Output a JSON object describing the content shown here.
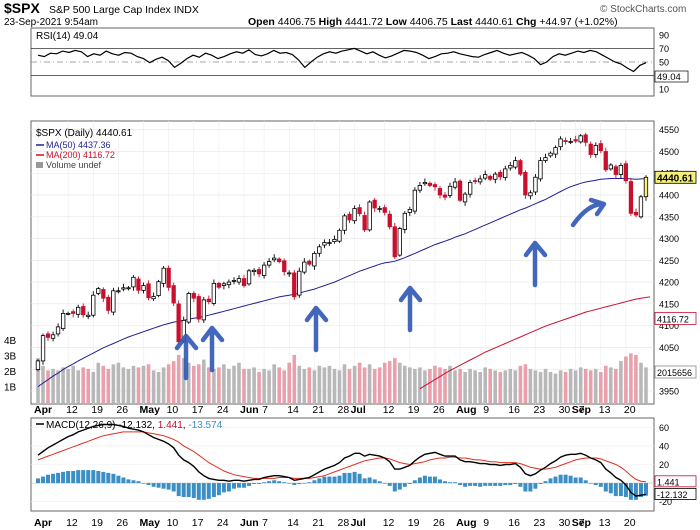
{
  "header": {
    "symbol": "$SPX",
    "name": "S&P 500 Large Cap Index",
    "exchange": "INDX",
    "date": "23-Sep-2021 9:54am",
    "open_label": "Open",
    "open": "4406.75",
    "high_label": "High",
    "high": "4441.72",
    "low_label": "Low",
    "low": "4406.75",
    "last_label": "Last",
    "last": "4440.61",
    "chg_label": "Chg",
    "chg": "+44.97 (+1.02%)",
    "watermark": "© StockCharts.com"
  },
  "colors": {
    "up": "#000000",
    "down": "#c8102e",
    "ma50": "#1f1f8f",
    "ma200": "#c8102e",
    "vol_up": "#b8b8b8",
    "vol_down": "#e8a0ac",
    "macd": "#000000",
    "signal": "#e0301e",
    "hist": "#3b8fc4",
    "arrow": "#2f57b5",
    "rsi": "#000000",
    "last_tag_bg": "#f5f07a"
  },
  "chart_data": [
    {
      "type": "line",
      "panel": "rsi",
      "legend": "RSI(14) 49.04",
      "y_ticks": [
        90,
        70,
        50,
        30,
        10
      ],
      "ylim": [
        0,
        100
      ],
      "reference_lines": [
        70,
        50,
        30
      ],
      "last_value": "49.04",
      "values": [
        60,
        58,
        63,
        62,
        66,
        64,
        67,
        65,
        58,
        62,
        60,
        66,
        62,
        60,
        64,
        63,
        58,
        55,
        49,
        54,
        57,
        52,
        42,
        48,
        55,
        60,
        57,
        63,
        60,
        55,
        58,
        62,
        65,
        63,
        68,
        61,
        59,
        62,
        67,
        63,
        64,
        61,
        53,
        42,
        50,
        57,
        62,
        65,
        63,
        66,
        68,
        70,
        66,
        62,
        65,
        60,
        56,
        59,
        63,
        67,
        66,
        64,
        60,
        55,
        58,
        62,
        63,
        65,
        62,
        60,
        58,
        57,
        61,
        64,
        67,
        63,
        60,
        62,
        64,
        60,
        55,
        46,
        50,
        58,
        62,
        60,
        63,
        66,
        64,
        67,
        65,
        60,
        55,
        50,
        47,
        41,
        36,
        45,
        49
      ]
    },
    {
      "type": "candlestick",
      "panel": "price",
      "legend": [
        "$SPX (Daily) 4440.61",
        "MA(50) 4437.36",
        "MA(200) 4116.72",
        "Volume undef"
      ],
      "y_ticks": [
        4550,
        4500,
        4450,
        4400,
        4350,
        4300,
        4250,
        4200,
        4150,
        4100,
        4050,
        4000,
        3950
      ],
      "ylim": [
        3920,
        4570
      ],
      "last_tags": [
        {
          "label": "4440.61",
          "value": 4440.61
        },
        {
          "label": "4116.72",
          "value": 4116.72
        },
        {
          "label": "2015656",
          "value": 2015656
        }
      ],
      "volume_ticks": [
        "4B",
        "3B",
        "2B",
        "1B"
      ],
      "x_labels": [
        {
          "label": "Apr",
          "bar": 0
        },
        {
          "label": "12",
          "bar": 6
        },
        {
          "label": "19",
          "bar": 11
        },
        {
          "label": "26",
          "bar": 16
        },
        {
          "label": "May",
          "bar": 21
        },
        {
          "label": "10",
          "bar": 26
        },
        {
          "label": "17",
          "bar": 31
        },
        {
          "label": "24",
          "bar": 36
        },
        {
          "label": "Jun",
          "bar": 41
        },
        {
          "label": "7",
          "bar": 45
        },
        {
          "label": "14",
          "bar": 50
        },
        {
          "label": "21",
          "bar": 55
        },
        {
          "label": "28",
          "bar": 60
        },
        {
          "label": "Jul",
          "bar": 63
        },
        {
          "label": "12",
          "bar": 69
        },
        {
          "label": "19",
          "bar": 74
        },
        {
          "label": "26",
          "bar": 79
        },
        {
          "label": "Aug",
          "bar": 84
        },
        {
          "label": "9",
          "bar": 89
        },
        {
          "label": "16",
          "bar": 94
        },
        {
          "label": "23",
          "bar": 99
        },
        {
          "label": "30",
          "bar": 104
        },
        {
          "label": "Sep",
          "bar": 107
        },
        {
          "label": "7",
          "bar": 108
        },
        {
          "label": "13",
          "bar": 112
        },
        {
          "label": "20",
          "bar": 117
        }
      ],
      "closes": [
        4019,
        4077,
        4073,
        4079,
        4097,
        4128,
        4128,
        4128,
        4142,
        4125,
        4124,
        4170,
        4185,
        4163,
        4135,
        4180,
        4180,
        4187,
        4187,
        4211,
        4181,
        4192,
        4164,
        4167,
        4201,
        4232,
        4188,
        4152,
        4063,
        4112,
        4174,
        4163,
        4115,
        4159,
        4155,
        4197,
        4188,
        4196,
        4200,
        4204,
        4208,
        4192,
        4226,
        4227,
        4219,
        4239,
        4247,
        4255,
        4247,
        4224,
        4221,
        4166,
        4225,
        4246,
        4241,
        4266,
        4281,
        4291,
        4291,
        4298,
        4319,
        4352,
        4343,
        4369,
        4357,
        4320,
        4384,
        4370,
        4369,
        4360,
        4327,
        4258,
        4323,
        4358,
        4367,
        4411,
        4422,
        4429,
        4422,
        4419,
        4400,
        4395,
        4420,
        4430,
        4388,
        4402,
        4429,
        4432,
        4437,
        4447,
        4436,
        4448,
        4442,
        4460,
        4468,
        4479,
        4448,
        4400,
        4405,
        4441,
        4479,
        4486,
        4496,
        4509,
        4529,
        4523,
        4523,
        4524,
        4536,
        4521,
        4493,
        4514,
        4502,
        4458,
        4469,
        4447,
        4468,
        4433,
        4358,
        4354,
        4396,
        4440.61
      ],
      "ma50": [
        3960,
        3968,
        3976,
        3984,
        3991,
        3999,
        4006,
        4012,
        4019,
        4025,
        4031,
        4037,
        4043,
        4049,
        4054,
        4059,
        4064,
        4069,
        4074,
        4078,
        4082,
        4086,
        4090,
        4094,
        4098,
        4102,
        4105,
        4108,
        4110,
        4112,
        4115,
        4117,
        4119,
        4121,
        4124,
        4127,
        4130,
        4133,
        4136,
        4139,
        4142,
        4145,
        4148,
        4151,
        4154,
        4157,
        4160,
        4163,
        4166,
        4168,
        4170,
        4172,
        4175,
        4178,
        4181,
        4184,
        4188,
        4192,
        4196,
        4200,
        4205,
        4210,
        4215,
        4220,
        4225,
        4229,
        4233,
        4237,
        4241,
        4244,
        4246,
        4248,
        4252,
        4256,
        4261,
        4266,
        4271,
        4276,
        4281,
        4286,
        4290,
        4294,
        4298,
        4303,
        4307,
        4311,
        4316,
        4321,
        4326,
        4331,
        4336,
        4341,
        4346,
        4351,
        4356,
        4361,
        4366,
        4370,
        4375,
        4380,
        4385,
        4390,
        4396,
        4402,
        4408,
        4414,
        4419,
        4423,
        4427,
        4430,
        4432,
        4434,
        4436,
        4437,
        4438,
        4438,
        4438,
        4438,
        4437,
        4436,
        4437,
        4437.36
      ],
      "ma200": [
        3950,
        3950,
        3950,
        3950,
        3950,
        3950,
        3950,
        3950,
        3950,
        3950,
        3950,
        3950,
        3950,
        3950,
        3950,
        3950,
        3950,
        3950,
        3950,
        3950,
        3950,
        3950,
        3950,
        3950,
        3950,
        3950,
        3950,
        3950,
        3950,
        3950,
        3950,
        3950,
        3950,
        3950,
        3950,
        3950,
        3950,
        3950,
        3950,
        3950,
        3950,
        3950,
        3950,
        3950,
        3950,
        3950,
        3950,
        3950,
        3950,
        3950,
        3950,
        3950,
        3950,
        3950,
        3950,
        3950,
        3950,
        3950,
        3950,
        3950,
        3950,
        3950,
        3950,
        3950,
        3950,
        3950,
        3950,
        3950,
        3950,
        3950,
        3950,
        3950,
        3950,
        3950,
        3950,
        3950,
        3955,
        3962,
        3969,
        3976,
        3983,
        3990,
        3997,
        4003,
        4009,
        4015,
        4021,
        4027,
        4033,
        4039,
        4044,
        4049,
        4054,
        4059,
        4064,
        4069,
        4074,
        4079,
        4084,
        4089,
        4094,
        4099,
        4103,
        4107,
        4111,
        4115,
        4119,
        4123,
        4127,
        4131,
        4134,
        4137,
        4140,
        4143,
        4146,
        4149,
        4152,
        4155,
        4158,
        4161,
        4163,
        4116.72
      ],
      "volumes": [
        2.9,
        2.4,
        2.1,
        2.2,
        2.1,
        2.3,
        2.2,
        2.4,
        2.1,
        2.3,
        2.2,
        2.0,
        2.6,
        2.4,
        2.2,
        2.5,
        2.6,
        2.3,
        2.2,
        2.4,
        2.3,
        2.4,
        2.5,
        2.1,
        2.0,
        2.3,
        2.5,
        2.7,
        3.1,
        2.9,
        2.6,
        2.4,
        2.5,
        2.8,
        2.3,
        2.2,
        2.3,
        2.5,
        2.2,
        2.4,
        2.6,
        2.2,
        2.2,
        2.3,
        2.0,
        2.2,
        2.1,
        2.5,
        2.3,
        2.1,
        2.6,
        3.1,
        2.4,
        2.2,
        2.3,
        2.1,
        2.4,
        2.3,
        2.4,
        2.2,
        2.1,
        2.5,
        2.2,
        2.4,
        2.6,
        2.3,
        2.5,
        2.2,
        2.3,
        2.6,
        2.7,
        2.9,
        2.6,
        2.4,
        2.3,
        2.2,
        2.3,
        2.1,
        2.2,
        2.4,
        2.3,
        2.2,
        2.4,
        2.1,
        2.2,
        2.0,
        2.2,
        2.1,
        2.0,
        2.3,
        2.2,
        2.1,
        2.0,
        2.1,
        2.2,
        2.1,
        2.4,
        2.5,
        2.2,
        2.1,
        2.0,
        2.2,
        2.0,
        1.9,
        2.1,
        2.0,
        2.2,
        2.1,
        2.3,
        2.2,
        2.1,
        2.2,
        2.0,
        2.4,
        2.3,
        2.2,
        2.7,
        3.0,
        3.2,
        3.1,
        2.6,
        2.3
      ]
    },
    {
      "type": "line",
      "panel": "macd",
      "legend_label": "MACD(12,26,9)",
      "legend_values": [
        "-12.132",
        "1.441",
        "-13.574"
      ],
      "y_ticks": [
        60,
        40,
        20,
        0,
        -20
      ],
      "ylim": [
        -30,
        70
      ],
      "last_tags": [
        {
          "label": "1.441",
          "value": 1.441
        },
        {
          "label": "-12.132",
          "value": -12.132
        }
      ],
      "macd": [
        30,
        34,
        38,
        41,
        44,
        47,
        50,
        52,
        55,
        57,
        59,
        61,
        62,
        63,
        63,
        63,
        62,
        61,
        59,
        58,
        57,
        55,
        52,
        49,
        47,
        45,
        42,
        38,
        30,
        25,
        22,
        18,
        12,
        8,
        5,
        4,
        3,
        3,
        2,
        3,
        3,
        2,
        3,
        4,
        4,
        6,
        7,
        8,
        8,
        7,
        6,
        3,
        4,
        5,
        6,
        9,
        12,
        15,
        17,
        19,
        22,
        27,
        29,
        32,
        32,
        29,
        31,
        30,
        29,
        27,
        23,
        15,
        15,
        17,
        19,
        24,
        28,
        31,
        32,
        33,
        31,
        29,
        29,
        29,
        25,
        23,
        23,
        22,
        21,
        21,
        20,
        20,
        19,
        20,
        20,
        21,
        17,
        10,
        8,
        10,
        14,
        17,
        21,
        24,
        28,
        30,
        31,
        31,
        32,
        30,
        27,
        25,
        22,
        15,
        11,
        6,
        3,
        -2,
        -10,
        -14,
        -13,
        -12.132
      ],
      "signal": [
        25,
        27,
        29,
        31,
        33,
        35,
        37,
        39,
        41,
        43,
        45,
        47,
        49,
        51,
        52,
        53,
        54,
        55,
        55,
        55,
        55,
        55,
        54,
        53,
        52,
        51,
        49,
        47,
        44,
        40,
        37,
        34,
        30,
        26,
        22,
        19,
        16,
        13,
        11,
        9,
        8,
        7,
        6,
        5,
        5,
        5,
        5,
        5,
        6,
        6,
        6,
        5,
        5,
        5,
        5,
        6,
        7,
        8,
        10,
        12,
        14,
        16,
        18,
        20,
        22,
        24,
        25,
        26,
        27,
        27,
        26,
        24,
        22,
        21,
        20,
        21,
        22,
        23,
        25,
        26,
        27,
        27,
        28,
        28,
        27,
        27,
        26,
        25,
        25,
        24,
        23,
        23,
        22,
        22,
        22,
        22,
        21,
        19,
        17,
        16,
        15,
        15,
        16,
        17,
        19,
        21,
        23,
        25,
        26,
        27,
        27,
        27,
        26,
        24,
        22,
        20,
        17,
        13,
        8,
        4,
        2,
        1.441
      ],
      "hist": [
        5,
        7,
        9,
        10,
        11,
        12,
        13,
        13,
        14,
        14,
        14,
        14,
        13,
        12,
        11,
        10,
        8,
        6,
        4,
        3,
        2,
        0,
        -2,
        -4,
        -5,
        -6,
        -7,
        -9,
        -14,
        -15,
        -15,
        -16,
        -18,
        -18,
        -17,
        -15,
        -13,
        -10,
        -9,
        -6,
        -5,
        -5,
        -3,
        -1,
        -1,
        1,
        2,
        3,
        2,
        1,
        0,
        -2,
        -1,
        0,
        1,
        3,
        5,
        7,
        7,
        7,
        8,
        11,
        11,
        12,
        10,
        5,
        6,
        4,
        2,
        0,
        -3,
        -9,
        -7,
        -4,
        -1,
        3,
        6,
        8,
        7,
        7,
        4,
        2,
        1,
        1,
        -2,
        -4,
        -3,
        -3,
        -4,
        -3,
        -3,
        -3,
        -3,
        -2,
        -2,
        -1,
        -4,
        -9,
        -9,
        -6,
        -1,
        2,
        5,
        7,
        9,
        9,
        8,
        6,
        6,
        3,
        0,
        -2,
        -4,
        -9,
        -11,
        -14,
        -14,
        -15,
        -18,
        -18,
        -15,
        -13.574
      ]
    }
  ]
}
